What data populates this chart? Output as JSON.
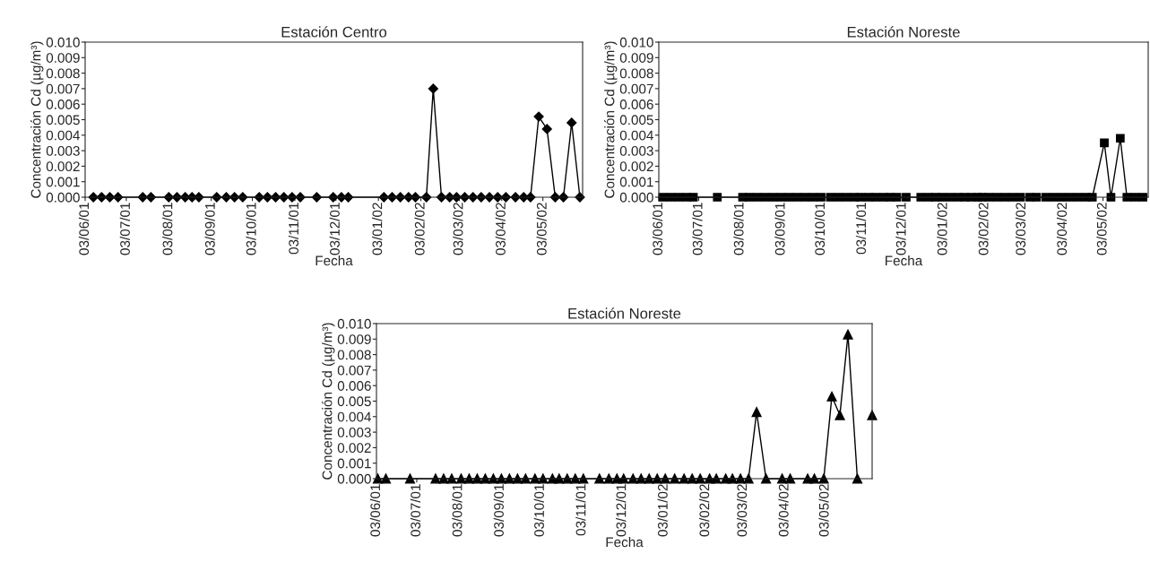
{
  "chart_data": [
    {
      "type": "line",
      "title": "Estación Centro",
      "xlabel": "Fecha",
      "ylabel": "Concentración Cd (µg/m³)",
      "marker": "diamond",
      "line_style": "solid",
      "grid": false,
      "series": [
        {
          "color": "#000000",
          "x": [
            "2001-06-09",
            "2001-06-15",
            "2001-06-21",
            "2001-06-27",
            "2001-07-15",
            "2001-07-21",
            "2001-08-03",
            "2001-08-09",
            "2001-08-15",
            "2001-08-20",
            "2001-08-25",
            "2001-09-07",
            "2001-09-14",
            "2001-09-20",
            "2001-09-26",
            "2001-10-08",
            "2001-10-14",
            "2001-10-20",
            "2001-10-26",
            "2001-11-01",
            "2001-11-07",
            "2001-11-19",
            "2001-12-01",
            "2001-12-07",
            "2001-12-12",
            "2002-01-07",
            "2002-01-13",
            "2002-01-19",
            "2002-01-25",
            "2002-01-30",
            "2002-02-07",
            "2002-02-12",
            "2002-02-18",
            "2002-02-24",
            "2002-03-01",
            "2002-03-07",
            "2002-03-13",
            "2002-03-19",
            "2002-03-25",
            "2002-03-31",
            "2002-04-06",
            "2002-04-13",
            "2002-04-19",
            "2002-04-24",
            "2002-04-30",
            "2002-05-06",
            "2002-05-12",
            "2002-05-18",
            "2002-05-24",
            "2002-05-30"
          ],
          "values": [
            0,
            0,
            0,
            0,
            0,
            0,
            0,
            0,
            0,
            0,
            0,
            0,
            0,
            0,
            0,
            0,
            0,
            0,
            0,
            0,
            0,
            0,
            0,
            0,
            0,
            0,
            0,
            0,
            0,
            0,
            0,
            0.007,
            0,
            0,
            0,
            0,
            0,
            0,
            0,
            0,
            0,
            0,
            0,
            0,
            0.0052,
            0.0044,
            0,
            0,
            0.0048,
            0
          ]
        }
      ],
      "xlim": [
        "2001-06-03",
        "2002-06-01"
      ],
      "xticks": [
        {
          "value": "2001-06-03",
          "label": "03/06/01"
        },
        {
          "value": "2001-07-03",
          "label": "03/07/01"
        },
        {
          "value": "2001-08-03",
          "label": "03/08/01"
        },
        {
          "value": "2001-09-03",
          "label": "03/09/01"
        },
        {
          "value": "2001-10-03",
          "label": "03/10/01"
        },
        {
          "value": "2001-11-03",
          "label": "03/11/01"
        },
        {
          "value": "2001-12-03",
          "label": "03/12/01"
        },
        {
          "value": "2002-01-03",
          "label": "03/01/02"
        },
        {
          "value": "2002-02-03",
          "label": "03/02/02"
        },
        {
          "value": "2002-03-03",
          "label": "03/03/02"
        },
        {
          "value": "2002-04-03",
          "label": "03/04/02"
        },
        {
          "value": "2002-05-03",
          "label": "03/05/02"
        }
      ],
      "ylim": [
        0,
        0.01
      ],
      "yticks": [
        {
          "value": 0,
          "label": "0.000"
        },
        {
          "value": 0.001,
          "label": "0.001"
        },
        {
          "value": 0.002,
          "label": "0.002"
        },
        {
          "value": 0.003,
          "label": "0.003"
        },
        {
          "value": 0.004,
          "label": "0.004"
        },
        {
          "value": 0.005,
          "label": "0.005"
        },
        {
          "value": 0.006,
          "label": "0.006"
        },
        {
          "value": 0.007,
          "label": "0.007"
        },
        {
          "value": 0.008,
          "label": "0.008"
        },
        {
          "value": 0.009,
          "label": "0.009"
        },
        {
          "value": 0.01,
          "label": "0.010"
        }
      ]
    },
    {
      "type": "line",
      "title": "Estación Noreste",
      "xlabel": "Fecha",
      "ylabel": "Concentración Cd (µg/m³)",
      "marker": "square",
      "line_style": "solid",
      "grid": false,
      "series": [
        {
          "color": "#000000",
          "x": [
            "2001-06-06",
            "2001-06-12",
            "2001-06-18",
            "2001-06-24",
            "2001-06-29",
            "2001-07-17",
            "2001-08-05",
            "2001-08-10",
            "2001-08-16",
            "2001-08-22",
            "2001-08-28",
            "2001-09-03",
            "2001-09-09",
            "2001-09-15",
            "2001-09-21",
            "2001-09-27",
            "2001-10-03",
            "2001-10-10",
            "2001-10-16",
            "2001-10-22",
            "2001-10-28",
            "2001-11-02",
            "2001-11-08",
            "2001-11-13",
            "2001-11-19",
            "2001-11-24",
            "2001-11-29",
            "2001-12-06",
            "2001-12-17",
            "2001-12-23",
            "2001-12-28",
            "2002-01-02",
            "2002-01-08",
            "2002-01-14",
            "2002-01-19",
            "2002-01-24",
            "2002-01-29",
            "2002-02-01",
            "2002-02-06",
            "2002-02-12",
            "2002-02-18",
            "2002-02-24",
            "2002-03-02",
            "2002-03-09",
            "2002-03-14",
            "2002-03-21",
            "2002-03-27",
            "2002-04-02",
            "2002-04-08",
            "2002-04-14",
            "2002-04-20",
            "2002-04-25",
            "2002-05-04",
            "2002-05-09",
            "2002-05-16",
            "2002-05-21",
            "2002-05-27",
            "2002-06-02"
          ],
          "values": [
            0,
            0,
            0,
            0,
            0,
            0,
            0,
            0,
            0,
            0,
            0,
            0,
            0,
            0,
            0,
            0,
            0,
            0,
            0,
            0,
            0,
            0,
            0,
            0,
            0,
            0,
            0,
            0,
            0,
            0,
            0,
            0,
            0,
            0,
            0,
            0,
            0,
            0,
            0,
            0,
            0,
            0,
            0,
            0,
            0,
            0,
            0,
            0,
            0,
            0,
            0,
            0,
            0.0035,
            0,
            0.0038,
            0,
            0,
            0
          ]
        }
      ],
      "xlim": [
        "2001-06-03",
        "2002-06-06"
      ],
      "xticks": [
        {
          "value": "2001-06-03",
          "label": "03/06/01"
        },
        {
          "value": "2001-07-03",
          "label": "03/07/01"
        },
        {
          "value": "2001-08-03",
          "label": "03/08/01"
        },
        {
          "value": "2001-09-03",
          "label": "03/09/01"
        },
        {
          "value": "2001-10-03",
          "label": "03/10/01"
        },
        {
          "value": "2001-11-03",
          "label": "03/11/01"
        },
        {
          "value": "2001-12-03",
          "label": "03/12/01"
        },
        {
          "value": "2002-01-03",
          "label": "03/01/02"
        },
        {
          "value": "2002-02-03",
          "label": "03/02/02"
        },
        {
          "value": "2002-03-03",
          "label": "03/03/02"
        },
        {
          "value": "2002-04-03",
          "label": "03/04/02"
        },
        {
          "value": "2002-05-03",
          "label": "03/05/02"
        }
      ],
      "ylim": [
        0,
        0.01
      ],
      "yticks": [
        {
          "value": 0,
          "label": "0.000"
        },
        {
          "value": 0.001,
          "label": "0.001"
        },
        {
          "value": 0.002,
          "label": "0.002"
        },
        {
          "value": 0.003,
          "label": "0.003"
        },
        {
          "value": 0.004,
          "label": "0.004"
        },
        {
          "value": 0.005,
          "label": "0.005"
        },
        {
          "value": 0.006,
          "label": "0.006"
        },
        {
          "value": 0.007,
          "label": "0.007"
        },
        {
          "value": 0.008,
          "label": "0.008"
        },
        {
          "value": 0.009,
          "label": "0.009"
        },
        {
          "value": 0.01,
          "label": "0.010"
        }
      ]
    },
    {
      "type": "line",
      "title": "Estación Noreste",
      "xlabel": "Fecha",
      "ylabel": "Concentración Cd (µg/m³)",
      "marker": "triangle",
      "line_style": "solid",
      "grid": false,
      "series": [
        {
          "color": "#000000",
          "x": [
            "2001-06-04",
            "2001-06-10",
            "2001-06-28",
            "2001-07-17",
            "2001-07-23",
            "2001-07-29",
            "2001-08-05",
            "2001-08-11",
            "2001-08-17",
            "2001-08-23",
            "2001-08-29",
            "2001-09-04",
            "2001-09-10",
            "2001-09-16",
            "2001-09-22",
            "2001-09-29",
            "2001-10-05",
            "2001-10-12",
            "2001-10-17",
            "2001-10-23",
            "2001-10-29",
            "2001-11-04",
            "2001-11-16",
            "2001-11-23",
            "2001-11-29",
            "2001-12-04",
            "2001-12-11",
            "2001-12-17",
            "2001-12-23",
            "2001-12-29",
            "2002-01-04",
            "2002-01-11",
            "2002-01-18",
            "2002-01-24",
            "2002-01-30",
            "2002-02-06",
            "2002-02-11",
            "2002-02-18",
            "2002-02-23",
            "2002-03-01",
            "2002-03-07",
            "2002-03-13",
            "2002-03-20",
            "2002-04-01",
            "2002-04-07",
            "2002-04-20",
            "2002-04-25",
            "2002-05-02",
            "2002-05-08",
            "2002-05-14",
            "2002-05-20",
            "2002-05-27",
            "2002-06-02",
            "2002-06-07"
          ],
          "values": [
            0,
            0,
            0,
            0,
            0,
            0,
            0,
            0,
            0,
            0,
            0,
            0,
            0,
            0,
            0,
            0,
            0,
            0,
            0,
            0,
            0,
            0,
            0,
            0,
            0,
            0,
            0,
            0,
            0,
            0,
            0,
            0,
            0,
            0,
            0,
            0,
            0,
            0,
            0,
            0,
            0,
            0.0043,
            0,
            0,
            0,
            0,
            0,
            0,
            0.0053,
            0.0041,
            0.0093,
            0,
            null,
            0.0041
          ]
        }
      ],
      "xlim": [
        "2001-06-03",
        "2002-06-07"
      ],
      "xticks": [
        {
          "value": "2001-06-03",
          "label": "03/06/01"
        },
        {
          "value": "2001-07-03",
          "label": "03/07/01"
        },
        {
          "value": "2001-08-03",
          "label": "03/08/01"
        },
        {
          "value": "2001-09-03",
          "label": "03/09/01"
        },
        {
          "value": "2001-10-03",
          "label": "03/10/01"
        },
        {
          "value": "2001-11-03",
          "label": "03/11/01"
        },
        {
          "value": "2001-12-03",
          "label": "03/12/01"
        },
        {
          "value": "2002-01-03",
          "label": "03/01/02"
        },
        {
          "value": "2002-02-03",
          "label": "03/02/02"
        },
        {
          "value": "2002-03-03",
          "label": "03/03/02"
        },
        {
          "value": "2002-04-03",
          "label": "03/04/02"
        },
        {
          "value": "2002-05-03",
          "label": "03/05/02"
        }
      ],
      "ylim": [
        0,
        0.01
      ],
      "yticks": [
        {
          "value": 0,
          "label": "0.000"
        },
        {
          "value": 0.001,
          "label": "0.001"
        },
        {
          "value": 0.002,
          "label": "0.002"
        },
        {
          "value": 0.003,
          "label": "0.003"
        },
        {
          "value": 0.004,
          "label": "0.004"
        },
        {
          "value": 0.005,
          "label": "0.005"
        },
        {
          "value": 0.006,
          "label": "0.006"
        },
        {
          "value": 0.007,
          "label": "0.007"
        },
        {
          "value": 0.008,
          "label": "0.008"
        },
        {
          "value": 0.009,
          "label": "0.009"
        },
        {
          "value": 0.01,
          "label": "0.010"
        }
      ]
    }
  ]
}
